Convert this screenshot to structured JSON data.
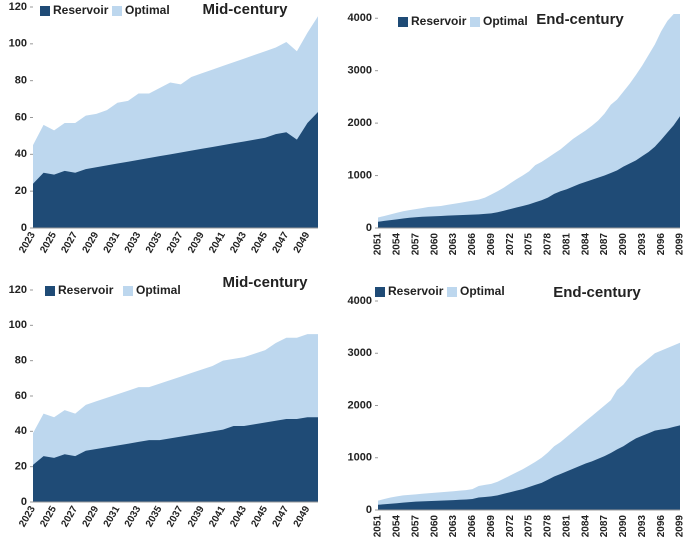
{
  "chart_data": [
    {
      "type": "area",
      "title": "Mid-century",
      "categories": [
        "2023",
        null,
        "2025",
        null,
        "2027",
        null,
        "2029",
        null,
        "2031",
        null,
        "2033",
        null,
        "2035",
        null,
        "2037",
        null,
        "2039",
        null,
        "2041",
        null,
        "2043",
        null,
        "2045",
        null,
        "2047",
        null,
        "2049",
        null
      ],
      "series": [
        {
          "name": "Reservoir",
          "color": "#1f4b76",
          "values": [
            24,
            30,
            29,
            31,
            30,
            32,
            33,
            34,
            35,
            36,
            37,
            38,
            39,
            40,
            41,
            42,
            43,
            44,
            45,
            46,
            47,
            48,
            49,
            51,
            52,
            48,
            57,
            63
          ]
        },
        {
          "name": "Optimal",
          "color": "#bdd7ee",
          "values": [
            45,
            56,
            53,
            57,
            57,
            61,
            62,
            64,
            68,
            69,
            73,
            73,
            76,
            79,
            78,
            82,
            84,
            86,
            88,
            90,
            92,
            94,
            96,
            98,
            101,
            96,
            106,
            115
          ]
        }
      ],
      "ylim": [
        0,
        120
      ],
      "yticks": [
        0,
        20,
        40,
        60,
        80,
        100,
        120
      ]
    },
    {
      "type": "area",
      "title": "End-century",
      "categories": [
        "2051",
        null,
        null,
        "2054",
        null,
        null,
        "2057",
        null,
        null,
        "2060",
        null,
        null,
        "2063",
        null,
        null,
        "2066",
        null,
        null,
        "2069",
        null,
        null,
        "2072",
        null,
        null,
        "2075",
        null,
        null,
        "2078",
        null,
        null,
        "2081",
        null,
        null,
        "2084",
        null,
        null,
        "2087",
        null,
        null,
        "2090",
        null,
        null,
        "2093",
        null,
        null,
        "2096",
        null,
        null,
        "2099"
      ],
      "series": [
        {
          "name": "Reservoir",
          "color": "#1f4b76",
          "values": [
            120,
            135,
            150,
            165,
            180,
            195,
            205,
            215,
            220,
            225,
            230,
            235,
            240,
            245,
            250,
            255,
            260,
            270,
            280,
            300,
            330,
            360,
            390,
            420,
            450,
            490,
            530,
            580,
            650,
            700,
            740,
            790,
            840,
            880,
            920,
            960,
            1000,
            1050,
            1100,
            1170,
            1230,
            1290,
            1370,
            1450,
            1550,
            1680,
            1820,
            1960,
            2130
          ]
        },
        {
          "name": "Optimal",
          "color": "#bdd7ee",
          "values": [
            200,
            230,
            260,
            290,
            320,
            340,
            360,
            380,
            400,
            410,
            420,
            440,
            460,
            480,
            500,
            520,
            540,
            580,
            640,
            700,
            770,
            850,
            930,
            1000,
            1080,
            1200,
            1260,
            1340,
            1420,
            1500,
            1600,
            1700,
            1780,
            1860,
            1950,
            2050,
            2180,
            2350,
            2450,
            2600,
            2750,
            2920,
            3100,
            3300,
            3500,
            3750,
            3950,
            4080,
            4080
          ]
        }
      ],
      "ylim": [
        0,
        4100
      ],
      "yticks": [
        0,
        1000,
        2000,
        3000,
        4000
      ]
    },
    {
      "type": "area",
      "title": "Mid-century",
      "categories": [
        "2023",
        null,
        "2025",
        null,
        "2027",
        null,
        "2029",
        null,
        "2031",
        null,
        "2033",
        null,
        "2035",
        null,
        "2037",
        null,
        "2039",
        null,
        "2041",
        null,
        "2043",
        null,
        "2045",
        null,
        "2047",
        null,
        "2049",
        null
      ],
      "series": [
        {
          "name": "Reservoir",
          "color": "#1f4b76",
          "values": [
            21,
            26,
            25,
            27,
            26,
            29,
            30,
            31,
            32,
            33,
            34,
            35,
            35,
            36,
            37,
            38,
            39,
            40,
            41,
            43,
            43,
            44,
            45,
            46,
            47,
            47,
            48,
            48
          ]
        },
        {
          "name": "Optimal",
          "color": "#bdd7ee",
          "values": [
            39,
            50,
            48,
            52,
            50,
            55,
            57,
            59,
            61,
            63,
            65,
            65,
            67,
            69,
            71,
            73,
            75,
            77,
            80,
            81,
            82,
            84,
            86,
            90,
            93,
            93,
            95,
            95
          ]
        }
      ],
      "ylim": [
        0,
        120
      ],
      "yticks": [
        0,
        20,
        40,
        60,
        80,
        100,
        120
      ]
    },
    {
      "type": "area",
      "title": "End-century",
      "categories": [
        "2051",
        null,
        null,
        "2054",
        null,
        null,
        "2057",
        null,
        null,
        "2060",
        null,
        null,
        "2063",
        null,
        null,
        "2066",
        null,
        null,
        "2069",
        null,
        null,
        "2072",
        null,
        null,
        "2075",
        null,
        null,
        "2078",
        null,
        null,
        "2081",
        null,
        null,
        "2084",
        null,
        null,
        "2087",
        null,
        null,
        "2090",
        null,
        null,
        "2093",
        null,
        null,
        "2096",
        null,
        null,
        "2099"
      ],
      "series": [
        {
          "name": "Reservoir",
          "color": "#1f4b76",
          "values": [
            100,
            110,
            120,
            130,
            140,
            150,
            160,
            165,
            170,
            175,
            180,
            185,
            190,
            195,
            200,
            210,
            240,
            250,
            260,
            280,
            310,
            340,
            370,
            400,
            440,
            480,
            520,
            580,
            640,
            690,
            740,
            790,
            840,
            890,
            930,
            980,
            1030,
            1090,
            1160,
            1220,
            1300,
            1370,
            1420,
            1470,
            1520,
            1540,
            1560,
            1590,
            1620
          ]
        },
        {
          "name": "Optimal",
          "color": "#bdd7ee",
          "values": [
            180,
            210,
            240,
            260,
            280,
            290,
            300,
            310,
            320,
            330,
            340,
            350,
            360,
            370,
            380,
            400,
            460,
            480,
            500,
            540,
            600,
            660,
            720,
            780,
            850,
            920,
            1000,
            1100,
            1220,
            1300,
            1400,
            1500,
            1600,
            1700,
            1800,
            1900,
            2000,
            2100,
            2300,
            2400,
            2550,
            2700,
            2800,
            2900,
            3000,
            3050,
            3100,
            3150,
            3200
          ]
        }
      ],
      "ylim": [
        0,
        4000
      ],
      "yticks": [
        0,
        1000,
        2000,
        3000,
        4000
      ]
    }
  ]
}
